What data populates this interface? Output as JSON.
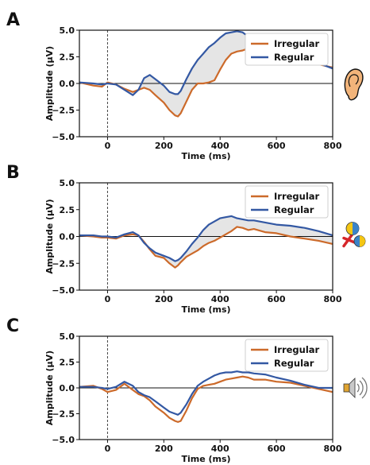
{
  "chart_data": [
    {
      "panel": "A",
      "type": "line",
      "xlabel": "Time (ms)",
      "ylabel": "Amplitude (μV)",
      "xlim": [
        -100,
        800
      ],
      "ylim": [
        5.0,
        -5.0
      ],
      "y_inverted": true,
      "xticks": [
        0,
        200,
        400,
        600,
        800
      ],
      "yticks": [
        -5.0,
        -2.5,
        0.0,
        2.5,
        5.0
      ],
      "ytick_labels": [
        "−5.0",
        "−2.5",
        "0.0",
        "2.5",
        "5.0"
      ],
      "grid": false,
      "legend_position": "top-right",
      "shaded_difference": true,
      "icon": "ear-icon",
      "x": [
        -100,
        -50,
        -20,
        0,
        30,
        60,
        90,
        110,
        130,
        150,
        170,
        200,
        220,
        240,
        250,
        260,
        280,
        300,
        320,
        340,
        360,
        380,
        400,
        420,
        440,
        460,
        480,
        500,
        520,
        560,
        600,
        650,
        700,
        750,
        800
      ],
      "series": [
        {
          "name": "Irregular",
          "color": "#cc6a2a",
          "values": [
            0.1,
            -0.2,
            -0.3,
            0.1,
            -0.1,
            -0.5,
            -0.8,
            -0.6,
            -0.4,
            -0.6,
            -1.1,
            -1.8,
            -2.5,
            -3.0,
            -3.1,
            -2.8,
            -1.7,
            -0.6,
            0.0,
            0.0,
            0.1,
            0.3,
            1.3,
            2.2,
            2.8,
            3.0,
            3.1,
            3.3,
            3.2,
            3.0,
            2.8,
            2.5,
            2.1,
            1.8,
            1.5
          ]
        },
        {
          "name": "Regular",
          "color": "#3358a3",
          "values": [
            0.1,
            0.0,
            -0.1,
            0.0,
            -0.1,
            -0.6,
            -1.1,
            -0.6,
            0.5,
            0.8,
            0.4,
            -0.2,
            -0.8,
            -1.0,
            -1.0,
            -0.7,
            0.4,
            1.4,
            2.2,
            2.8,
            3.4,
            3.8,
            4.3,
            4.7,
            4.8,
            4.9,
            4.8,
            4.4,
            4.0,
            3.3,
            3.1,
            2.7,
            2.3,
            1.9,
            1.4
          ]
        }
      ]
    },
    {
      "panel": "B",
      "type": "line",
      "xlabel": "Time (ms)",
      "ylabel": "Amplitude (μV)",
      "xlim": [
        -100,
        800
      ],
      "ylim": [
        5.0,
        -5.0
      ],
      "y_inverted": true,
      "xticks": [
        0,
        200,
        400,
        600,
        800
      ],
      "yticks": [
        -5.0,
        -2.5,
        0.0,
        2.5,
        5.0
      ],
      "ytick_labels": [
        "−5.0",
        "−2.5",
        "0.0",
        "2.5",
        "5.0"
      ],
      "grid": false,
      "legend_position": "top-right",
      "shaded_difference": true,
      "icon": "maracas-icon",
      "x": [
        -100,
        -50,
        -20,
        0,
        30,
        60,
        90,
        110,
        130,
        150,
        170,
        200,
        220,
        240,
        250,
        260,
        280,
        300,
        320,
        340,
        360,
        380,
        400,
        420,
        440,
        460,
        480,
        500,
        520,
        560,
        600,
        650,
        700,
        750,
        800
      ],
      "series": [
        {
          "name": "Irregular",
          "color": "#cc6a2a",
          "values": [
            0.1,
            0.0,
            -0.1,
            -0.1,
            -0.2,
            0.1,
            0.2,
            0.1,
            -0.5,
            -1.2,
            -1.8,
            -2.0,
            -2.5,
            -2.9,
            -2.7,
            -2.4,
            -1.9,
            -1.6,
            -1.3,
            -0.9,
            -0.6,
            -0.4,
            -0.1,
            0.2,
            0.5,
            0.9,
            0.8,
            0.6,
            0.7,
            0.4,
            0.3,
            0.0,
            -0.2,
            -0.4,
            -0.7
          ]
        },
        {
          "name": "Regular",
          "color": "#3358a3",
          "values": [
            0.1,
            0.1,
            0.0,
            0.0,
            -0.1,
            0.2,
            0.4,
            0.1,
            -0.6,
            -1.1,
            -1.5,
            -1.8,
            -2.0,
            -2.3,
            -2.2,
            -2.0,
            -1.4,
            -0.7,
            -0.1,
            0.6,
            1.1,
            1.4,
            1.7,
            1.8,
            1.9,
            1.7,
            1.6,
            1.5,
            1.5,
            1.3,
            1.1,
            1.0,
            0.8,
            0.5,
            0.1
          ]
        }
      ]
    },
    {
      "panel": "C",
      "type": "line",
      "xlabel": "Time (ms)",
      "ylabel": "Amplitude (μV)",
      "xlim": [
        -100,
        800
      ],
      "ylim": [
        5.0,
        -5.0
      ],
      "y_inverted": true,
      "xticks": [
        0,
        200,
        400,
        600,
        800
      ],
      "yticks": [
        -5.0,
        -2.5,
        0.0,
        2.5,
        5.0
      ],
      "ytick_labels": [
        "−5.0",
        "−2.5",
        "0.0",
        "2.5",
        "5.0"
      ],
      "grid": false,
      "legend_position": "top-right",
      "shaded_difference": false,
      "icon": "speaker-icon",
      "x": [
        -100,
        -50,
        -20,
        0,
        30,
        60,
        90,
        110,
        130,
        150,
        170,
        200,
        220,
        240,
        250,
        260,
        280,
        300,
        320,
        340,
        360,
        380,
        400,
        420,
        440,
        460,
        480,
        500,
        520,
        560,
        600,
        650,
        700,
        750,
        800
      ],
      "series": [
        {
          "name": "Irregular",
          "color": "#cc6a2a",
          "values": [
            0.1,
            0.2,
            -0.1,
            -0.4,
            -0.2,
            0.4,
            -0.2,
            -0.6,
            -0.8,
            -1.2,
            -1.8,
            -2.4,
            -2.9,
            -3.2,
            -3.3,
            -3.2,
            -2.2,
            -1.0,
            -0.1,
            0.2,
            0.3,
            0.4,
            0.6,
            0.8,
            0.9,
            1.0,
            1.1,
            1.0,
            0.8,
            0.8,
            0.6,
            0.5,
            0.2,
            -0.1,
            -0.4
          ]
        },
        {
          "name": "Regular",
          "color": "#3358a3",
          "values": [
            0.1,
            0.1,
            0.0,
            -0.1,
            0.1,
            0.6,
            0.2,
            -0.4,
            -0.7,
            -0.9,
            -1.3,
            -1.9,
            -2.3,
            -2.5,
            -2.6,
            -2.4,
            -1.6,
            -0.6,
            0.2,
            0.6,
            0.9,
            1.2,
            1.4,
            1.5,
            1.5,
            1.6,
            1.5,
            1.5,
            1.4,
            1.3,
            1.0,
            0.7,
            0.3,
            0.0,
            0.0
          ]
        }
      ]
    }
  ]
}
